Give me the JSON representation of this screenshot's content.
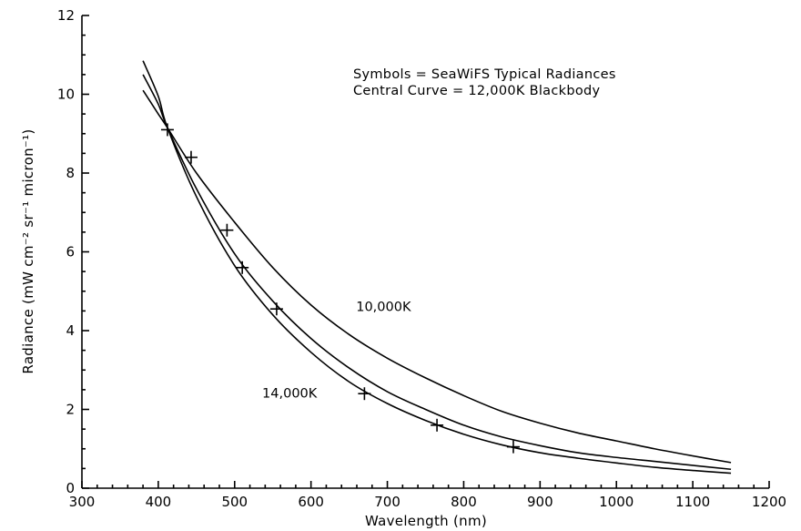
{
  "chart_data": {
    "type": "line",
    "title": "",
    "xlabel": "Wavelength (nm)",
    "ylabel": "Radiance (mW cm⁻² sr⁻¹ micron⁻¹)",
    "xlim": [
      300,
      1200
    ],
    "ylim": [
      0,
      12
    ],
    "x_ticks": [
      300,
      400,
      500,
      600,
      700,
      800,
      900,
      1000,
      1100,
      1200
    ],
    "y_ticks": [
      0,
      2,
      4,
      6,
      8,
      10,
      12
    ],
    "grid": false,
    "annotations": [
      "Symbols = SeaWiFS Typical Radiances",
      "Central Curve = 12,000K Blackbody"
    ],
    "series": [
      {
        "name": "10,000K",
        "style": "line",
        "temperature_K": 10000,
        "x": [
          380,
          400,
          412,
          450,
          500,
          550,
          600,
          650,
          700,
          750,
          800,
          850,
          900,
          950,
          1000,
          1050,
          1100,
          1150
        ],
        "y": [
          10.1,
          9.5,
          9.15,
          8.0,
          6.75,
          5.6,
          4.65,
          3.9,
          3.3,
          2.8,
          2.35,
          1.95,
          1.65,
          1.4,
          1.2,
          1.0,
          0.82,
          0.65
        ]
      },
      {
        "name": "",
        "style": "line",
        "temperature_K": 12000,
        "x": [
          380,
          400,
          412,
          450,
          500,
          550,
          600,
          650,
          700,
          750,
          800,
          850,
          900,
          950,
          1000,
          1050,
          1100,
          1150
        ],
        "y": [
          10.5,
          9.75,
          9.15,
          7.6,
          5.95,
          4.75,
          3.8,
          3.05,
          2.45,
          2.0,
          1.6,
          1.3,
          1.08,
          0.9,
          0.78,
          0.68,
          0.58,
          0.48
        ]
      },
      {
        "name": "14,000K",
        "style": "line",
        "temperature_K": 14000,
        "x": [
          380,
          400,
          412,
          450,
          500,
          550,
          600,
          650,
          700,
          750,
          800,
          850,
          900,
          950,
          1000,
          1050,
          1100,
          1150
        ],
        "y": [
          10.85,
          9.95,
          9.15,
          7.4,
          5.65,
          4.4,
          3.45,
          2.7,
          2.15,
          1.72,
          1.37,
          1.1,
          0.9,
          0.76,
          0.64,
          0.53,
          0.45,
          0.38
        ]
      },
      {
        "name": "SeaWiFS Typical Radiances",
        "style": "markers",
        "marker": "+",
        "x": [
          412,
          443,
          490,
          510,
          555,
          670,
          765,
          865
        ],
        "y": [
          9.1,
          8.4,
          6.55,
          5.6,
          4.55,
          2.4,
          1.6,
          1.05
        ]
      }
    ],
    "curve_labels": [
      {
        "series": 0,
        "text": "10,000K",
        "at_x": 695,
        "at_y": 4.5
      },
      {
        "series": 2,
        "text": "14,000K",
        "at_x": 572,
        "at_y": 2.3
      }
    ]
  }
}
